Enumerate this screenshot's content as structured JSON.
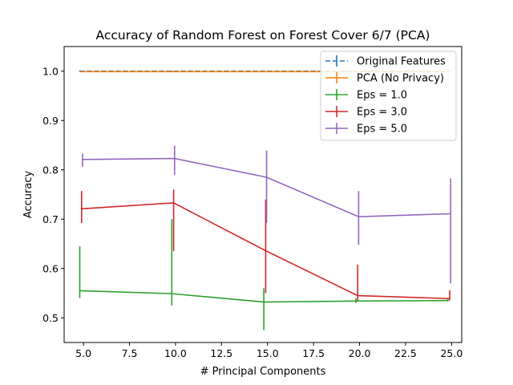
{
  "chart_data": {
    "type": "line",
    "title": "Accuracy of Random Forest on Forest Cover 6/7 (PCA)",
    "xlabel": "# Principal Components",
    "ylabel": "Accuracy",
    "xlim": [
      3.95,
      25.55
    ],
    "ylim": [
      0.45,
      1.05
    ],
    "xticks": [
      5.0,
      7.5,
      10.0,
      12.5,
      15.0,
      17.5,
      20.0,
      22.5,
      25.0
    ],
    "xtick_labels": [
      "5.0",
      "7.5",
      "10.0",
      "12.5",
      "15.0",
      "17.5",
      "20.0",
      "22.5",
      "25.0"
    ],
    "yticks": [
      0.5,
      0.6,
      0.7,
      0.8,
      0.9,
      1.0
    ],
    "ytick_labels": [
      "0.5",
      "0.6",
      "0.7",
      "0.8",
      "0.9",
      "1.0"
    ],
    "grid": false,
    "legend_position": "top-right",
    "series": [
      {
        "name": "Original Features",
        "color": "#1f77b4",
        "dashed": true,
        "x": [
          4.8,
          9.8,
          14.8,
          19.8,
          24.8
        ],
        "y": [
          1.0,
          1.0,
          1.0,
          1.0,
          1.0
        ],
        "err_low": [
          1.0,
          1.0,
          1.0,
          1.0,
          1.0
        ],
        "err_high": [
          1.0,
          1.0,
          1.0,
          1.0,
          1.0
        ]
      },
      {
        "name": "PCA (No Privacy)",
        "color": "#ff7f0e",
        "dashed": false,
        "x": [
          4.9,
          9.9,
          14.9,
          19.9,
          24.9
        ],
        "y": [
          0.999,
          0.999,
          0.999,
          0.999,
          0.999
        ],
        "err_low": [
          0.998,
          0.998,
          0.998,
          0.998,
          0.998
        ],
        "err_high": [
          1.0,
          1.0,
          1.0,
          1.0,
          1.0
        ]
      },
      {
        "name": "Eps = 1.0",
        "color": "#2ca02c",
        "dashed": false,
        "x": [
          4.8,
          9.8,
          14.8,
          19.8,
          24.8
        ],
        "y": [
          0.555,
          0.549,
          0.532,
          0.534,
          0.535
        ],
        "err_low": [
          0.54,
          0.525,
          0.475,
          0.53,
          0.533
        ],
        "err_high": [
          0.645,
          0.7,
          0.56,
          0.54,
          0.538
        ]
      },
      {
        "name": "Eps = 3.0",
        "color": "#d62728",
        "dashed": false,
        "x": [
          4.9,
          9.9,
          14.9,
          19.9,
          24.9
        ],
        "y": [
          0.721,
          0.733,
          0.636,
          0.545,
          0.539
        ],
        "err_low": [
          0.692,
          0.635,
          0.55,
          0.535,
          0.535
        ],
        "err_high": [
          0.757,
          0.76,
          0.74,
          0.608,
          0.556
        ]
      },
      {
        "name": "Eps = 5.0",
        "color": "#9467bd",
        "dashed": false,
        "x": [
          4.95,
          9.95,
          14.95,
          19.95,
          24.95
        ],
        "y": [
          0.821,
          0.823,
          0.785,
          0.705,
          0.711
        ],
        "err_low": [
          0.806,
          0.79,
          0.692,
          0.648,
          0.57
        ],
        "err_high": [
          0.833,
          0.849,
          0.839,
          0.757,
          0.783
        ]
      }
    ]
  }
}
